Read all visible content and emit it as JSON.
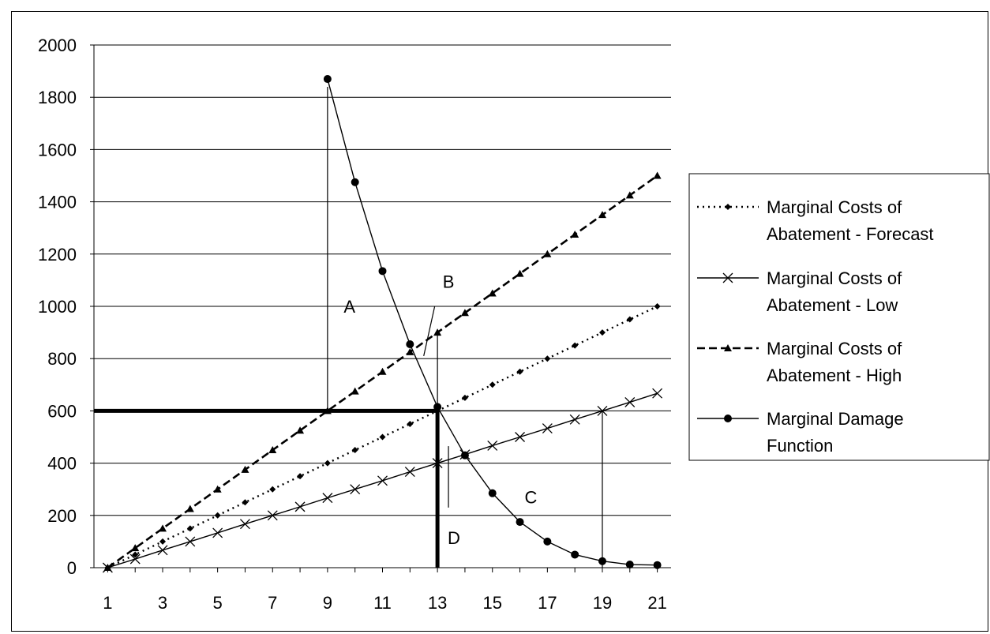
{
  "chart_data": {
    "type": "line",
    "title": "",
    "xlabel": "",
    "ylabel": "",
    "x_ticks": [
      "1",
      "3",
      "5",
      "7",
      "9",
      "11",
      "13",
      "15",
      "17",
      "19",
      "21"
    ],
    "y_ticks": [
      "0",
      "200",
      "400",
      "600",
      "800",
      "1000",
      "1200",
      "1400",
      "1600",
      "1800",
      "2000"
    ],
    "xlim": [
      0.5,
      21.5
    ],
    "ylim": [
      0,
      2000
    ],
    "grid": "horizontal",
    "legend_position": "right",
    "series": [
      {
        "name": "Marginal Costs of Abatement - Forecast",
        "style": "dotted",
        "marker": "diamond",
        "x": [
          1,
          2,
          3,
          4,
          5,
          6,
          7,
          8,
          9,
          10,
          11,
          12,
          13,
          14,
          15,
          16,
          17,
          18,
          19,
          20,
          21
        ],
        "values": [
          0,
          50,
          100,
          150,
          200,
          250,
          300,
          350,
          400,
          450,
          500,
          550,
          600,
          650,
          700,
          750,
          800,
          850,
          900,
          950,
          1000
        ]
      },
      {
        "name": "Marginal Costs of Abatement - Low",
        "style": "solid",
        "marker": "x",
        "x": [
          1,
          2,
          3,
          4,
          5,
          6,
          7,
          8,
          9,
          10,
          11,
          12,
          13,
          14,
          15,
          16,
          17,
          18,
          19,
          20,
          21
        ],
        "values": [
          0,
          33,
          67,
          100,
          133,
          167,
          200,
          233,
          267,
          300,
          333,
          367,
          400,
          433,
          467,
          500,
          533,
          567,
          600,
          633,
          667
        ]
      },
      {
        "name": "Marginal Costs of Abatement - High",
        "style": "dashed",
        "marker": "triangle",
        "x": [
          1,
          2,
          3,
          4,
          5,
          6,
          7,
          8,
          9,
          10,
          11,
          12,
          13,
          14,
          15,
          16,
          17,
          18,
          19,
          20,
          21
        ],
        "values": [
          0,
          75,
          150,
          225,
          300,
          375,
          450,
          525,
          600,
          675,
          750,
          825,
          900,
          975,
          1050,
          1125,
          1200,
          1275,
          1350,
          1425,
          1500
        ]
      },
      {
        "name": "Marginal Damage Function",
        "style": "solid",
        "marker": "circle",
        "x": [
          9,
          10,
          11,
          12,
          13,
          14,
          15,
          16,
          17,
          18,
          19,
          20,
          21
        ],
        "values": [
          1870,
          1475,
          1135,
          855,
          615,
          430,
          285,
          175,
          100,
          50,
          25,
          12,
          10
        ]
      }
    ],
    "annotations": [
      {
        "label": "A",
        "x": 9.8,
        "y": 1000
      },
      {
        "label": "B",
        "x": 13.4,
        "y": 1095
      },
      {
        "label": "C",
        "x": 16.4,
        "y": 270
      },
      {
        "label": "D",
        "x": 13.6,
        "y": 115
      }
    ],
    "reference_lines": [
      {
        "from": [
          0.5,
          600
        ],
        "to": [
          13,
          600
        ],
        "weight": "thick"
      },
      {
        "from": [
          13,
          0
        ],
        "to": [
          13,
          600
        ],
        "weight": "thick"
      },
      {
        "from": [
          13,
          600
        ],
        "to": [
          19,
          600
        ],
        "weight": "thin"
      },
      {
        "from": [
          19,
          0
        ],
        "to": [
          19,
          600
        ],
        "weight": "thin"
      },
      {
        "from": [
          9,
          600
        ],
        "to": [
          9,
          1840
        ],
        "weight": "thin"
      },
      {
        "from": [
          13,
          600
        ],
        "to": [
          13,
          900
        ],
        "weight": "thin"
      },
      {
        "from": [
          12.5,
          810
        ],
        "to": [
          12.9,
          1000
        ],
        "weight": "thin"
      },
      {
        "from": [
          13.4,
          230
        ],
        "to": [
          13.4,
          465
        ],
        "weight": "thin"
      }
    ]
  }
}
